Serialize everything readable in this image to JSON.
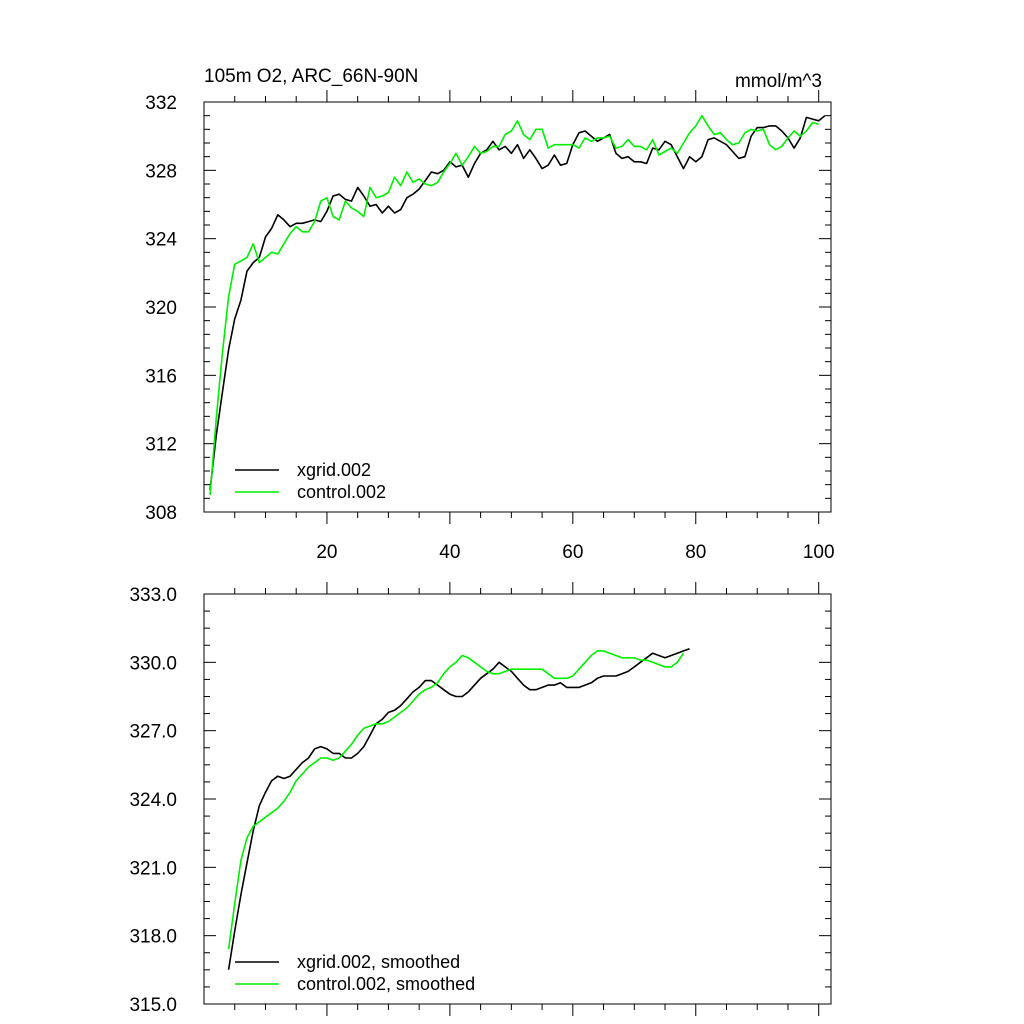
{
  "chart_data": [
    {
      "type": "line",
      "title": "105m O2, ARC_66N-90N",
      "units": "mmol/m^3",
      "xlim": [
        0,
        102
      ],
      "ylim": [
        308,
        332
      ],
      "x_ticks": [
        20,
        40,
        60,
        80,
        100
      ],
      "x_tick_labels": [
        "20",
        "40",
        "60",
        "80",
        "100"
      ],
      "y_ticks": [
        308,
        312,
        316,
        320,
        324,
        328,
        332
      ],
      "y_tick_labels": [
        "308",
        "312",
        "316",
        "320",
        "324",
        "328",
        "332"
      ],
      "legend_position": "bottom-left",
      "series": [
        {
          "name": "xgrid.002",
          "color": "#000000",
          "x_start": 1,
          "values": [
            309.3,
            312.5,
            315.0,
            317.5,
            319.3,
            320.4,
            322.1,
            322.6,
            322.9,
            324.1,
            324.6,
            325.4,
            325.1,
            324.7,
            324.9,
            324.9,
            325.0,
            325.1,
            325.0,
            325.6,
            326.5,
            326.6,
            326.3,
            326.2,
            327.0,
            326.5,
            325.9,
            326.0,
            325.5,
            325.9,
            325.5,
            325.7,
            326.4,
            326.6,
            326.9,
            327.4,
            327.9,
            327.8,
            328.0,
            328.5,
            328.2,
            328.3,
            327.6,
            328.4,
            329.0,
            329.2,
            329.7,
            329.2,
            329.4,
            329.0,
            329.5,
            328.7,
            329.2,
            328.7,
            328.1,
            328.3,
            328.9,
            328.3,
            328.4,
            329.5,
            330.2,
            330.3,
            330.0,
            329.7,
            329.9,
            330.1,
            329.0,
            328.7,
            328.8,
            328.5,
            328.5,
            328.4,
            329.3,
            329.2,
            329.7,
            329.5,
            328.8,
            328.1,
            328.8,
            328.5,
            328.8,
            329.8,
            329.9,
            329.7,
            329.5,
            329.1,
            328.7,
            328.8,
            330.0,
            330.5,
            330.5,
            330.6,
            330.6,
            330.3,
            329.9,
            329.3,
            329.9,
            331.1,
            331.0,
            330.9,
            331.2
          ]
        },
        {
          "name": "control.002",
          "color": "#00ee00",
          "x_start": 1,
          "values": [
            309.0,
            313.5,
            317.3,
            320.6,
            322.5,
            322.7,
            322.9,
            323.7,
            322.6,
            322.9,
            323.2,
            323.1,
            323.7,
            324.3,
            324.7,
            324.4,
            324.4,
            325.0,
            326.2,
            326.4,
            325.3,
            325.1,
            326.2,
            325.8,
            325.6,
            325.3,
            327.0,
            326.4,
            326.5,
            326.7,
            327.6,
            327.1,
            327.9,
            327.3,
            327.5,
            327.2,
            327.1,
            327.3,
            327.9,
            328.4,
            329.0,
            328.3,
            328.8,
            329.4,
            329.0,
            329.1,
            329.4,
            329.4,
            330.1,
            330.3,
            330.9,
            330.1,
            329.8,
            330.4,
            330.4,
            329.3,
            329.5,
            329.5,
            329.5,
            329.5,
            329.3,
            329.9,
            329.7,
            329.9,
            329.9,
            330.0,
            329.3,
            329.4,
            329.8,
            329.4,
            329.4,
            329.2,
            329.8,
            328.9,
            329.1,
            329.3,
            329.0,
            329.6,
            330.2,
            330.6,
            331.2,
            330.6,
            330.1,
            330.2,
            329.8,
            329.5,
            329.6,
            330.2,
            330.4,
            330.3,
            330.4,
            329.5,
            329.2,
            329.4,
            329.9,
            330.3,
            330.0,
            330.3,
            330.8,
            330.7
          ]
        }
      ]
    },
    {
      "type": "line",
      "title": "",
      "units": "",
      "xlim": [
        0,
        102
      ],
      "ylim": [
        315.0,
        333.0
      ],
      "x_ticks": [
        20,
        40,
        60,
        80,
        100
      ],
      "x_tick_labels": [],
      "y_ticks": [
        315.0,
        318.0,
        321.0,
        324.0,
        327.0,
        330.0,
        333.0
      ],
      "y_tick_labels": [
        "315.0",
        "318.0",
        "321.0",
        "324.0",
        "327.0",
        "330.0",
        "333.0"
      ],
      "legend_position": "bottom-left",
      "series": [
        {
          "name": "xgrid.002, smoothed",
          "color": "#000000",
          "x_start": 4,
          "values": [
            316.5,
            318.2,
            319.8,
            321.2,
            322.6,
            323.7,
            324.3,
            324.8,
            325.0,
            324.9,
            325.0,
            325.3,
            325.6,
            325.8,
            326.2,
            326.3,
            326.2,
            326.0,
            326.0,
            325.8,
            325.8,
            326.0,
            326.3,
            326.8,
            327.3,
            327.5,
            327.8,
            327.9,
            328.1,
            328.4,
            328.7,
            328.9,
            329.2,
            329.2,
            329.0,
            328.8,
            328.6,
            328.5,
            328.5,
            328.7,
            329.0,
            329.3,
            329.5,
            329.7,
            330.0,
            329.8,
            329.6,
            329.3,
            329.0,
            328.8,
            328.8,
            328.9,
            329.0,
            329.0,
            329.1,
            328.9,
            328.9,
            328.9,
            329.0,
            329.1,
            329.3,
            329.4,
            329.4,
            329.4,
            329.5,
            329.6,
            329.8,
            330.0,
            330.2,
            330.4,
            330.3,
            330.2,
            330.3,
            330.4,
            330.5,
            330.6
          ]
        },
        {
          "name": "control.002, smoothed",
          "color": "#00ee00",
          "x_start": 4,
          "values": [
            317.4,
            319.4,
            321.3,
            322.3,
            322.8,
            323.0,
            323.2,
            323.4,
            323.6,
            323.9,
            324.3,
            324.8,
            325.1,
            325.4,
            325.6,
            325.8,
            325.8,
            325.7,
            325.8,
            326.1,
            326.4,
            326.8,
            327.1,
            327.2,
            327.3,
            327.3,
            327.4,
            327.6,
            327.8,
            328.0,
            328.3,
            328.6,
            328.8,
            328.9,
            329.1,
            329.5,
            329.8,
            330.0,
            330.3,
            330.2,
            330.0,
            329.8,
            329.6,
            329.5,
            329.5,
            329.6,
            329.7,
            329.7,
            329.7,
            329.7,
            329.7,
            329.7,
            329.5,
            329.3,
            329.3,
            329.3,
            329.4,
            329.7,
            330.0,
            330.3,
            330.5,
            330.5,
            330.4,
            330.3,
            330.2,
            330.2,
            330.2,
            330.1,
            330.1,
            330.0,
            329.9,
            329.8,
            329.8,
            330.0,
            330.4
          ]
        }
      ]
    }
  ]
}
